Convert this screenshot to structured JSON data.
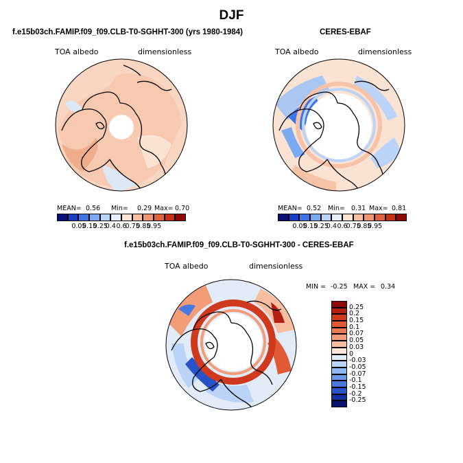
{
  "title": "DJF",
  "panels": [
    {
      "subtitle": "f.e15b03ch.FAMIP.f09_f09.CLB-T0-SGHHT-300 (yrs 1980-1984)",
      "left_label": "TOA albedo",
      "right_label": "dimensionless",
      "stats": {
        "mean_label": "MEAN=",
        "mean": "0.56",
        "min_label": "Min=",
        "min": "0.29",
        "max_label": "Max=",
        "max": "0.70"
      }
    },
    {
      "subtitle": "CERES-EBAF",
      "left_label": "TOA albedo",
      "right_label": "dimensionless",
      "stats": {
        "mean_label": "MEAN=",
        "mean": "0.52",
        "min_label": "Min=",
        "min": "0.31",
        "max_label": "Max=",
        "max": "0.81"
      }
    },
    {
      "subtitle": "f.e15b03ch.FAMIP.f09_f09.CLB-T0-SGHHT-300 - CERES-EBAF",
      "left_label": "TOA albedo",
      "right_label": "dimensionless",
      "stats": {
        "min_label": "MIN =",
        "min": "-0.25",
        "max_label": "MAX =",
        "max": "0.34"
      }
    }
  ],
  "colorbar_top": {
    "labels": [
      "0.05",
      "0.15",
      "0.25",
      "0.4",
      "0.6",
      "0.75",
      "0.85",
      "0.95"
    ],
    "colors": [
      "#0a0f78",
      "#1a3fc4",
      "#3f75e6",
      "#7aaaf2",
      "#b8d4f8",
      "#e6eef9",
      "#fce4d4",
      "#f8bfa0",
      "#f09572",
      "#e0613e",
      "#c63018",
      "#8e0a06"
    ]
  },
  "colorbar_diff": {
    "labels": [
      "0.25",
      "0.2",
      "0.15",
      "0.1",
      "0.07",
      "0.05",
      "0.03",
      "0",
      "-0.03",
      "-0.05",
      "-0.07",
      "-0.1",
      "-0.15",
      "-0.2",
      "-0.25"
    ],
    "colors": [
      "#8e0a06",
      "#b51f10",
      "#cf3a1e",
      "#e05a35",
      "#ea7c55",
      "#f29c78",
      "#f7bea0",
      "#fde6d6",
      "#e2ecf9",
      "#bad3f6",
      "#92b8f0",
      "#6d9ae8",
      "#4678de",
      "#2852c8",
      "#14309e",
      "#08136e"
    ]
  }
}
